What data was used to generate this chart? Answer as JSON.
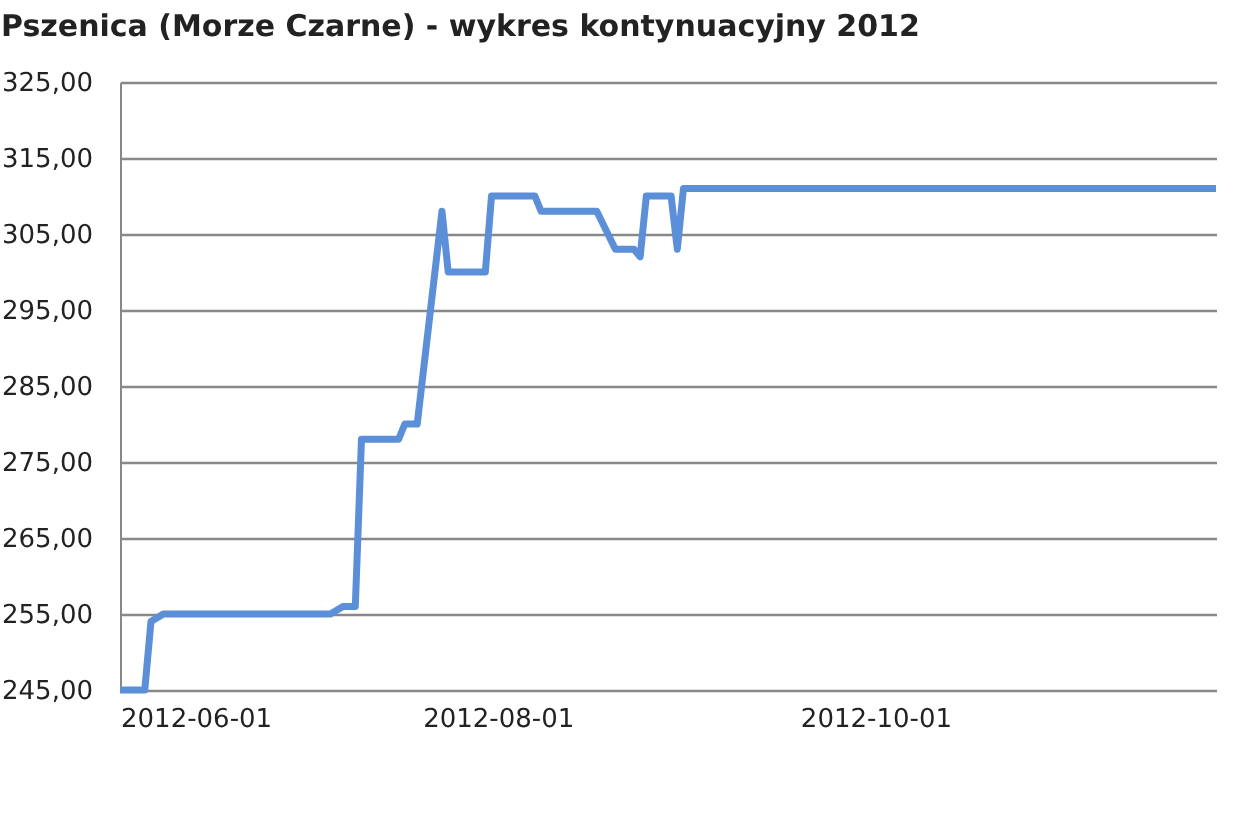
{
  "chart_data": {
    "type": "line",
    "title": "Pszenica (Morze Czarne) - wykres kontynuacyjny 2012",
    "x": [
      "2012-06-01",
      "2012-06-05",
      "2012-06-06",
      "2012-06-08",
      "2012-07-05",
      "2012-07-07",
      "2012-07-09",
      "2012-07-10",
      "2012-07-16",
      "2012-07-17",
      "2012-07-19",
      "2012-07-23",
      "2012-07-24",
      "2012-07-30",
      "2012-07-31",
      "2012-08-07",
      "2012-08-08",
      "2012-08-17",
      "2012-08-20",
      "2012-08-23",
      "2012-08-24",
      "2012-08-25",
      "2012-08-29",
      "2012-08-30",
      "2012-08-31",
      "2012-11-25"
    ],
    "series": [
      {
        "color": "#5b8fd8",
        "values": [
          245,
          245,
          254,
          255,
          255,
          256,
          256,
          278,
          278,
          280,
          280,
          308,
          300,
          300,
          310,
          310,
          308,
          308,
          303,
          303,
          302,
          310,
          310,
          303,
          311,
          311
        ]
      }
    ],
    "xlim": [
      "2012-06-01",
      "2012-11-25"
    ],
    "xticks": [
      {
        "value": "2012-06-01",
        "label": "2012-06-01"
      },
      {
        "value": "2012-08-01",
        "label": "2012-08-01"
      },
      {
        "value": "2012-10-01",
        "label": "2012-10-01"
      }
    ],
    "ylim": [
      245,
      325
    ],
    "yticks": [
      {
        "value": 245,
        "label": "245,00"
      },
      {
        "value": 255,
        "label": "255,00"
      },
      {
        "value": 265,
        "label": "265,00"
      },
      {
        "value": 275,
        "label": "275,00"
      },
      {
        "value": 285,
        "label": "285,00"
      },
      {
        "value": 295,
        "label": "295,00"
      },
      {
        "value": 305,
        "label": "305,00"
      },
      {
        "value": 315,
        "label": "315,00"
      },
      {
        "value": 325,
        "label": "325,00"
      }
    ],
    "grid": "y",
    "marker": "none",
    "line_style": "solid"
  }
}
